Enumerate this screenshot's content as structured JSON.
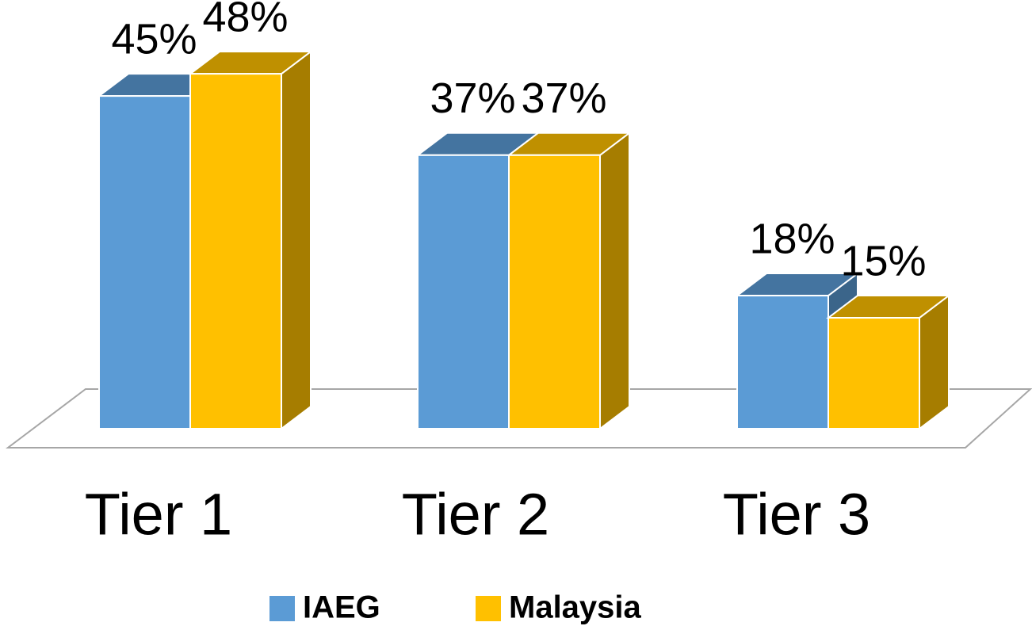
{
  "chart_data": {
    "type": "bar",
    "categories": [
      "Tier 1",
      "Tier 2",
      "Tier 3"
    ],
    "series": [
      {
        "name": "IAEG",
        "color": "#5b9bd5",
        "values": [
          45,
          37,
          18
        ],
        "value_labels": [
          "45%",
          "37%",
          "18%"
        ]
      },
      {
        "name": "Malaysia",
        "color": "#ffc000",
        "values": [
          48,
          37,
          15
        ],
        "value_labels": [
          "48%",
          "37%",
          "15%"
        ]
      }
    ]
  }
}
